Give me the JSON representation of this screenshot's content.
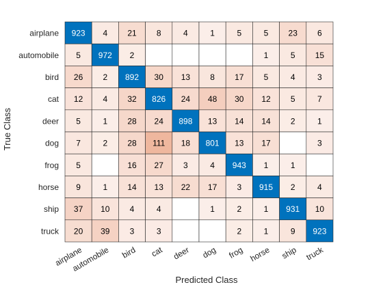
{
  "chart_data": {
    "type": "heatmap",
    "title": "",
    "xlabel": "Predicted Class",
    "ylabel": "True Class",
    "row_labels": [
      "airplane",
      "automobile",
      "bird",
      "cat",
      "deer",
      "dog",
      "frog",
      "horse",
      "ship",
      "truck"
    ],
    "col_labels": [
      "airplane",
      "automobile",
      "bird",
      "cat",
      "deer",
      "dog",
      "frog",
      "horse",
      "ship",
      "truck"
    ],
    "values": [
      [
        923,
        4,
        21,
        8,
        4,
        1,
        5,
        5,
        23,
        6
      ],
      [
        5,
        972,
        2,
        null,
        null,
        null,
        null,
        1,
        5,
        15
      ],
      [
        26,
        2,
        892,
        30,
        13,
        8,
        17,
        5,
        4,
        3
      ],
      [
        12,
        4,
        32,
        826,
        24,
        48,
        30,
        12,
        5,
        7
      ],
      [
        5,
        1,
        28,
        24,
        898,
        13,
        14,
        14,
        2,
        1
      ],
      [
        7,
        2,
        28,
        111,
        18,
        801,
        13,
        17,
        null,
        3
      ],
      [
        5,
        null,
        16,
        27,
        3,
        4,
        943,
        1,
        1,
        null
      ],
      [
        9,
        1,
        14,
        13,
        22,
        17,
        3,
        915,
        2,
        4
      ],
      [
        37,
        10,
        4,
        4,
        null,
        1,
        2,
        1,
        931,
        10
      ],
      [
        20,
        39,
        3,
        3,
        null,
        null,
        2,
        1,
        9,
        923
      ]
    ],
    "colors": {
      "diagonal": "#0072BD",
      "off_diagonal_max": "#D95319",
      "off_diagonal_min": "#FFFFFF",
      "grid": "#262626",
      "diagonal_text": "#FFFFFF",
      "off_diagonal_text": "#000000"
    }
  }
}
